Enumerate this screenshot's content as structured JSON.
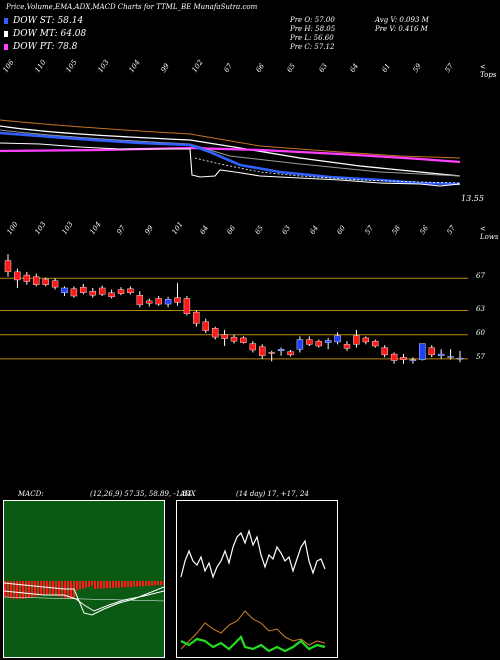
{
  "header": {
    "title": "Price,Volume,EMA,ADX,MACD Charts for TTML_BE MunafaSutra.com",
    "legend": [
      {
        "label": "DOW ST: 58.14",
        "color": "#3060ff"
      },
      {
        "label": "DOW MT: 64.08",
        "color": "#ffffff"
      },
      {
        "label": "DOW PT: 78.8",
        "color": "#ff40ff"
      }
    ],
    "ohlc": [
      "Pre O: 57.00",
      "Pre H: 58.05",
      "Pre L: 56.60",
      "Pre C: 57.12"
    ],
    "volume": [
      "Avg V: 0.093 M",
      "Pre V: 0.416 M"
    ]
  },
  "upper": {
    "tops_label": "< Tops",
    "top_labels": [
      "106",
      "110",
      "105",
      "103",
      "104",
      "99",
      "102",
      "67",
      "66",
      "65",
      "63",
      "64",
      "61",
      "59",
      "57"
    ],
    "last_value": "13.55"
  },
  "lower": {
    "lows_label": "< Lows",
    "low_labels": [
      "100",
      "103",
      "103",
      "104",
      "97",
      "99",
      "101",
      "64",
      "66",
      "65",
      "63",
      "64",
      "60",
      "57",
      "58",
      "56",
      "57"
    ],
    "ytick_labels": [
      "67",
      "63",
      "60",
      "57"
    ]
  },
  "macd": {
    "label": "MACD:",
    "values": "(12,26,9) 57.35, 58.89, -1.84"
  },
  "adx": {
    "label": "ADX",
    "values": "(14 day) 17, +17, 24"
  },
  "colors": {
    "bull": "#1e40ff",
    "bear": "#ff1a1a",
    "ema_short": "#3060ff",
    "ema_mid": "#ffffff",
    "ema_long": "#ff40ff",
    "level": "#b8860b"
  },
  "chart_data": {
    "type": "candlestick",
    "title": "Price,Volume,EMA,ADX,MACD Charts for TTML_BE MunafaSutra.com",
    "y_levels": [
      67,
      63,
      60,
      57
    ],
    "candles": [
      {
        "o": 69.2,
        "h": 70.0,
        "l": 67.2,
        "c": 67.8
      },
      {
        "o": 67.8,
        "h": 68.2,
        "l": 65.8,
        "c": 66.8
      },
      {
        "o": 67.4,
        "h": 67.8,
        "l": 66.2,
        "c": 66.6
      },
      {
        "o": 67.2,
        "h": 67.6,
        "l": 66.0,
        "c": 66.2
      },
      {
        "o": 66.9,
        "h": 67.1,
        "l": 66.0,
        "c": 66.2
      },
      {
        "o": 66.7,
        "h": 67.0,
        "l": 65.6,
        "c": 65.9
      },
      {
        "o": 65.2,
        "h": 66.0,
        "l": 64.8,
        "c": 65.8
      },
      {
        "o": 65.7,
        "h": 66.0,
        "l": 64.6,
        "c": 64.8
      },
      {
        "o": 65.9,
        "h": 66.3,
        "l": 65.0,
        "c": 65.2
      },
      {
        "o": 65.4,
        "h": 65.8,
        "l": 64.6,
        "c": 64.9
      },
      {
        "o": 65.8,
        "h": 66.1,
        "l": 64.8,
        "c": 65.0
      },
      {
        "o": 65.2,
        "h": 65.6,
        "l": 64.5,
        "c": 64.7
      },
      {
        "o": 65.6,
        "h": 65.9,
        "l": 64.9,
        "c": 65.1
      },
      {
        "o": 65.7,
        "h": 66.0,
        "l": 65.0,
        "c": 65.2
      },
      {
        "o": 64.9,
        "h": 65.4,
        "l": 63.4,
        "c": 63.7
      },
      {
        "o": 64.2,
        "h": 64.5,
        "l": 63.5,
        "c": 63.9
      },
      {
        "o": 64.5,
        "h": 64.8,
        "l": 63.6,
        "c": 63.8
      },
      {
        "o": 63.8,
        "h": 64.7,
        "l": 63.4,
        "c": 64.4
      },
      {
        "o": 64.6,
        "h": 66.4,
        "l": 63.6,
        "c": 64.0
      },
      {
        "o": 64.5,
        "h": 64.8,
        "l": 62.4,
        "c": 62.6
      },
      {
        "o": 62.8,
        "h": 63.0,
        "l": 61.0,
        "c": 61.4
      },
      {
        "o": 61.6,
        "h": 62.0,
        "l": 60.2,
        "c": 60.5
      },
      {
        "o": 60.8,
        "h": 61.0,
        "l": 59.4,
        "c": 59.7
      },
      {
        "o": 60.0,
        "h": 60.6,
        "l": 58.6,
        "c": 59.5
      },
      {
        "o": 59.7,
        "h": 60.0,
        "l": 58.9,
        "c": 59.2
      },
      {
        "o": 59.6,
        "h": 59.8,
        "l": 58.9,
        "c": 59.0
      },
      {
        "o": 58.9,
        "h": 59.2,
        "l": 57.8,
        "c": 58.1
      },
      {
        "o": 58.5,
        "h": 58.8,
        "l": 57.0,
        "c": 57.4
      },
      {
        "o": 57.8,
        "h": 58.0,
        "l": 56.7,
        "c": 57.7
      },
      {
        "o": 58.0,
        "h": 58.4,
        "l": 57.4,
        "c": 58.2
      },
      {
        "o": 57.9,
        "h": 58.1,
        "l": 57.3,
        "c": 57.5
      },
      {
        "o": 58.2,
        "h": 59.8,
        "l": 57.8,
        "c": 59.4
      },
      {
        "o": 59.4,
        "h": 59.8,
        "l": 58.6,
        "c": 58.8
      },
      {
        "o": 59.2,
        "h": 59.4,
        "l": 58.4,
        "c": 58.6
      },
      {
        "o": 59.0,
        "h": 59.6,
        "l": 58.2,
        "c": 59.3
      },
      {
        "o": 59.1,
        "h": 60.3,
        "l": 58.8,
        "c": 59.9
      },
      {
        "o": 58.8,
        "h": 59.2,
        "l": 58.0,
        "c": 58.3
      },
      {
        "o": 59.9,
        "h": 60.6,
        "l": 58.4,
        "c": 58.8
      },
      {
        "o": 59.6,
        "h": 59.8,
        "l": 58.8,
        "c": 59.1
      },
      {
        "o": 59.2,
        "h": 59.4,
        "l": 58.4,
        "c": 58.6
      },
      {
        "o": 58.4,
        "h": 58.7,
        "l": 57.2,
        "c": 57.5
      },
      {
        "o": 57.6,
        "h": 57.8,
        "l": 56.4,
        "c": 56.8
      },
      {
        "o": 57.2,
        "h": 57.6,
        "l": 56.4,
        "c": 56.9
      },
      {
        "o": 56.9,
        "h": 57.2,
        "l": 56.4,
        "c": 56.9
      },
      {
        "o": 56.9,
        "h": 58.9,
        "l": 56.8,
        "c": 58.9
      },
      {
        "o": 58.4,
        "h": 58.7,
        "l": 57.2,
        "c": 57.5
      },
      {
        "o": 57.4,
        "h": 58.2,
        "l": 57.0,
        "c": 57.6
      },
      {
        "o": 57.2,
        "h": 58.2,
        "l": 56.9,
        "c": 57.3
      },
      {
        "o": 57.0,
        "h": 58.0,
        "l": 56.6,
        "c": 57.1
      }
    ]
  }
}
